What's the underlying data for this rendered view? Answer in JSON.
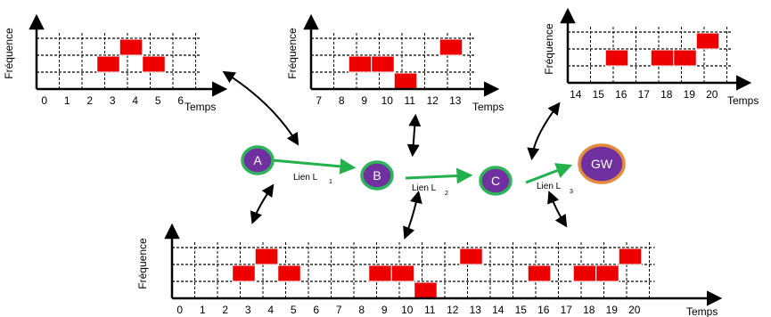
{
  "axes": {
    "y_label": "Fréquence",
    "x_label": "Temps"
  },
  "charts": [
    {
      "name": "chart-node-a",
      "x_ticks": [
        "0",
        "1",
        "2",
        "3",
        "4",
        "5",
        "6"
      ],
      "slots": [
        {
          "t": 2,
          "f": 1
        },
        {
          "t": 3,
          "f": 2
        },
        {
          "t": 4,
          "f": 1
        }
      ]
    },
    {
      "name": "chart-node-b",
      "x_ticks": [
        "7",
        "8",
        "9",
        "10",
        "11",
        "12",
        "13"
      ],
      "slots": [
        {
          "t": 8,
          "f": 1
        },
        {
          "t": 9,
          "f": 1
        },
        {
          "t": 10,
          "f": 0
        },
        {
          "t": 12,
          "f": 2
        }
      ]
    },
    {
      "name": "chart-node-c",
      "x_ticks": [
        "14",
        "15",
        "16",
        "17",
        "18",
        "19",
        "20"
      ],
      "slots": [
        {
          "t": 15,
          "f": 1
        },
        {
          "t": 17,
          "f": 1
        },
        {
          "t": 18,
          "f": 1
        },
        {
          "t": 19,
          "f": 2
        }
      ]
    },
    {
      "name": "chart-combined",
      "x_ticks": [
        "0",
        "1",
        "2",
        "3",
        "4",
        "5",
        "6",
        "7",
        "8",
        "9",
        "10",
        "11",
        "12",
        "13",
        "14",
        "15",
        "16",
        "17",
        "18",
        "19",
        "20"
      ],
      "slots": [
        {
          "t": 2,
          "f": 1
        },
        {
          "t": 3,
          "f": 2
        },
        {
          "t": 4,
          "f": 1
        },
        {
          "t": 8,
          "f": 1
        },
        {
          "t": 9,
          "f": 1
        },
        {
          "t": 10,
          "f": 0
        },
        {
          "t": 12,
          "f": 2
        },
        {
          "t": 15,
          "f": 1
        },
        {
          "t": 17,
          "f": 1
        },
        {
          "t": 18,
          "f": 1
        },
        {
          "t": 19,
          "f": 2
        }
      ]
    }
  ],
  "nodes": [
    {
      "name": "node-a",
      "label": "A"
    },
    {
      "name": "node-b",
      "label": "B"
    },
    {
      "name": "node-c",
      "label": "C"
    },
    {
      "name": "node-gw",
      "label": "GW"
    }
  ],
  "links": [
    {
      "name": "link-l1",
      "label": "Lien L",
      "sub": "1"
    },
    {
      "name": "link-l2",
      "label": "Lien L",
      "sub": "2"
    },
    {
      "name": "link-l3",
      "label": "Lien L",
      "sub": "3"
    }
  ],
  "colors": {
    "slot": "#ee0000",
    "slot_border": "#ffffff",
    "node_fill": "#7030a0",
    "node_ring": "#2eb35a",
    "gw_ring": "#e58a3c",
    "link_arrow": "#22b14c",
    "axis": "#000000"
  }
}
